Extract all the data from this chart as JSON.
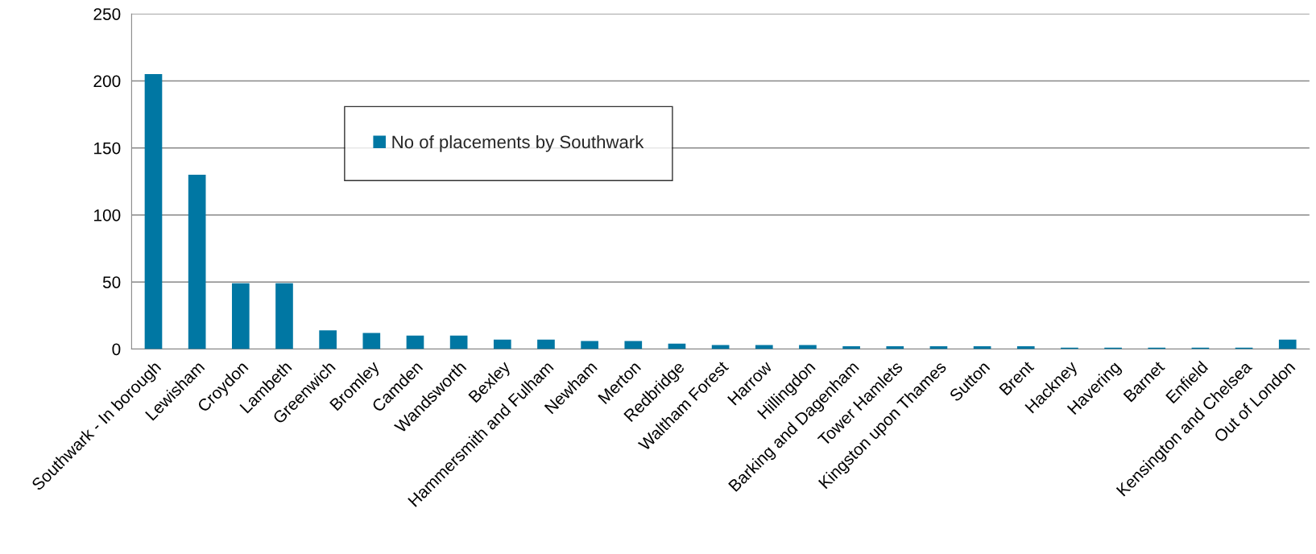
{
  "chart_data": {
    "type": "bar",
    "categories": [
      "Southwark - In borough",
      "Lewisham",
      "Croydon",
      "Lambeth",
      "Greenwich",
      "Bromley",
      "Camden",
      "Wandsworth",
      "Bexley",
      "Hammersmith and Fulham",
      "Newham",
      "Merton",
      "Redbridge",
      "Waltham Forest",
      "Harrow",
      "Hillingdon",
      "Barking and Dagenham",
      "Tower Hamlets",
      "Kingston upon Thames",
      "Sutton",
      "Brent",
      "Hackney",
      "Havering",
      "Barnet",
      "Enfield",
      "Kensington and Chelsea",
      "Out of London"
    ],
    "series": [
      {
        "name": "No of placements by Southwark",
        "color": "#0077a3",
        "values": [
          205,
          130,
          49,
          49,
          14,
          12,
          10,
          10,
          7,
          7,
          6,
          6,
          4,
          3,
          3,
          3,
          2,
          2,
          2,
          2,
          2,
          1,
          1,
          1,
          1,
          1,
          7
        ]
      }
    ],
    "ylim": [
      0,
      250
    ],
    "yticks": [
      0,
      50,
      100,
      150,
      200,
      250
    ],
    "grid": "y",
    "legend": "top"
  }
}
